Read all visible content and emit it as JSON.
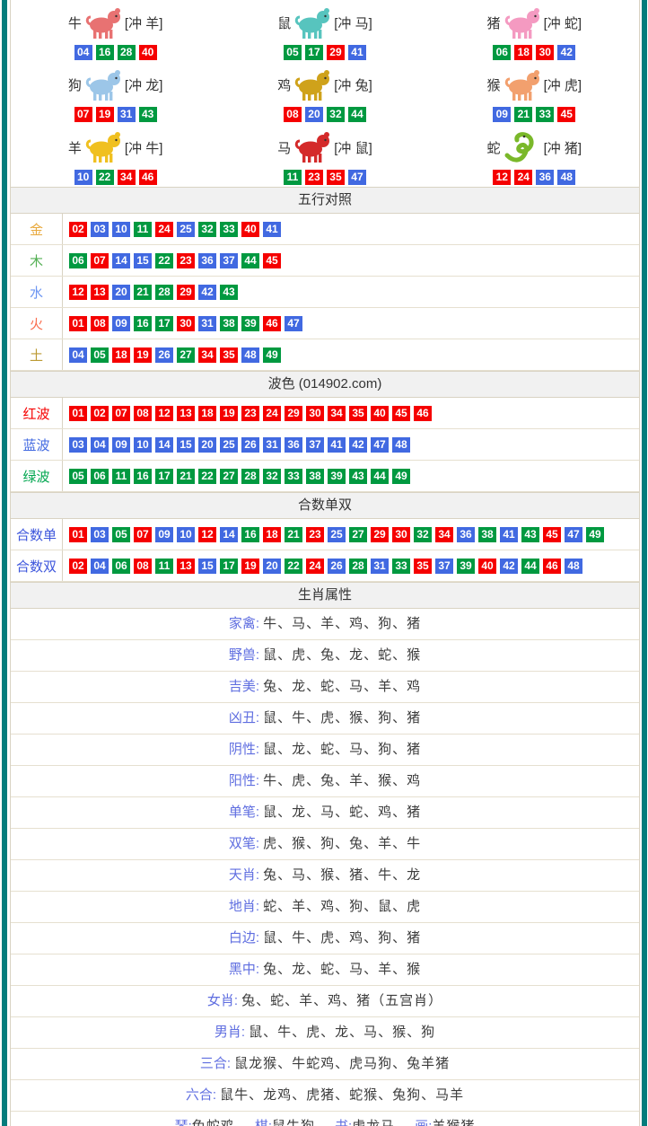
{
  "page": {
    "border_color": "#037C7C",
    "table_border_color": "#D9D3C3",
    "header_bg": "#F1F1F1"
  },
  "number_colors": {
    "red": "#F50000",
    "blue": "#4169E1",
    "green": "#009940"
  },
  "waves": {
    "red": [
      "01",
      "02",
      "07",
      "08",
      "12",
      "13",
      "18",
      "19",
      "23",
      "24",
      "29",
      "30",
      "34",
      "35",
      "40",
      "45",
      "46"
    ],
    "blue": [
      "03",
      "04",
      "09",
      "10",
      "14",
      "15",
      "20",
      "25",
      "26",
      "31",
      "36",
      "37",
      "41",
      "42",
      "47",
      "48"
    ],
    "green": [
      "05",
      "06",
      "11",
      "16",
      "17",
      "21",
      "22",
      "27",
      "28",
      "32",
      "33",
      "38",
      "39",
      "43",
      "44",
      "49"
    ]
  },
  "zodiac": [
    {
      "name": "牛",
      "clash": "[冲 羊]",
      "icon": "ox-icon",
      "icon_type": "quad",
      "icon_color": "#E87272",
      "numbers": [
        "04",
        "16",
        "28",
        "40"
      ]
    },
    {
      "name": "鼠",
      "clash": "[冲 马]",
      "icon": "rat-icon",
      "icon_type": "quad",
      "icon_color": "#57C4BE",
      "numbers": [
        "05",
        "17",
        "29",
        "41"
      ]
    },
    {
      "name": "猪",
      "clash": "[冲 蛇]",
      "icon": "pig-icon",
      "icon_type": "quad",
      "icon_color": "#F49AC1",
      "numbers": [
        "06",
        "18",
        "30",
        "42"
      ]
    },
    {
      "name": "狗",
      "clash": "[冲 龙]",
      "icon": "dog-icon",
      "icon_type": "quad",
      "icon_color": "#9CC6E8",
      "numbers": [
        "07",
        "19",
        "31",
        "43"
      ]
    },
    {
      "name": "鸡",
      "clash": "[冲 兔]",
      "icon": "rooster-icon",
      "icon_type": "quad",
      "icon_color": "#CFA21B",
      "numbers": [
        "08",
        "20",
        "32",
        "44"
      ]
    },
    {
      "name": "猴",
      "clash": "[冲 虎]",
      "icon": "monkey-icon",
      "icon_type": "quad",
      "icon_color": "#F2A06E",
      "numbers": [
        "09",
        "21",
        "33",
        "45"
      ]
    },
    {
      "name": "羊",
      "clash": "[冲 牛]",
      "icon": "goat-icon",
      "icon_type": "quad",
      "icon_color": "#F0C020",
      "numbers": [
        "10",
        "22",
        "34",
        "46"
      ]
    },
    {
      "name": "马",
      "clash": "[冲 鼠]",
      "icon": "horse-icon",
      "icon_type": "quad",
      "icon_color": "#D42A2A",
      "numbers": [
        "11",
        "23",
        "35",
        "47"
      ]
    },
    {
      "name": "蛇",
      "clash": "[冲 猪]",
      "icon": "snake-icon",
      "icon_type": "snake",
      "icon_color": "#7AB82A",
      "numbers": [
        "12",
        "24",
        "36",
        "48"
      ]
    }
  ],
  "sections": {
    "wuxing": {
      "title": "五行对照",
      "rows": [
        {
          "label": "金",
          "label_color": "#E8A93D",
          "numbers": [
            "02",
            "03",
            "10",
            "11",
            "24",
            "25",
            "32",
            "33",
            "40",
            "41"
          ]
        },
        {
          "label": "木",
          "label_color": "#55B055",
          "numbers": [
            "06",
            "07",
            "14",
            "15",
            "22",
            "23",
            "36",
            "37",
            "44",
            "45"
          ]
        },
        {
          "label": "水",
          "label_color": "#6C95F2",
          "numbers": [
            "12",
            "13",
            "20",
            "21",
            "28",
            "29",
            "42",
            "43"
          ]
        },
        {
          "label": "火",
          "label_color": "#FA6E4F",
          "numbers": [
            "01",
            "08",
            "09",
            "16",
            "17",
            "30",
            "31",
            "38",
            "39",
            "46",
            "47"
          ]
        },
        {
          "label": "土",
          "label_color": "#BC9A33",
          "numbers": [
            "04",
            "05",
            "18",
            "19",
            "26",
            "27",
            "34",
            "35",
            "48",
            "49"
          ]
        }
      ]
    },
    "bose": {
      "title": "波色 (014902.com)",
      "rows": [
        {
          "label": "红波",
          "label_color": "#F50000",
          "wave": "red"
        },
        {
          "label": "蓝波",
          "label_color": "#4169E1",
          "wave": "blue"
        },
        {
          "label": "绿波",
          "label_color": "#00A64F",
          "wave": "green"
        }
      ]
    },
    "heshu": {
      "title": "合数单双",
      "rows": [
        {
          "label": "合数单",
          "label_color": "#3D56DC",
          "numbers": [
            "01",
            "03",
            "05",
            "07",
            "09",
            "10",
            "12",
            "14",
            "16",
            "18",
            "21",
            "23",
            "25",
            "27",
            "29",
            "30",
            "32",
            "34",
            "36",
            "38",
            "41",
            "43",
            "45",
            "47",
            "49"
          ]
        },
        {
          "label": "合数双",
          "label_color": "#3D56DC",
          "numbers": [
            "02",
            "04",
            "06",
            "08",
            "11",
            "13",
            "15",
            "17",
            "19",
            "20",
            "22",
            "24",
            "26",
            "28",
            "31",
            "33",
            "35",
            "37",
            "39",
            "40",
            "42",
            "44",
            "46",
            "48"
          ]
        }
      ]
    },
    "shengxiao": {
      "title": "生肖属性",
      "rows": [
        {
          "label": "家禽",
          "value": "牛、马、羊、鸡、狗、猪"
        },
        {
          "label": "野兽",
          "value": "鼠、虎、兔、龙、蛇、猴"
        },
        {
          "label": "吉美",
          "value": "兔、龙、蛇、马、羊、鸡"
        },
        {
          "label": "凶丑",
          "value": "鼠、牛、虎、猴、狗、猪"
        },
        {
          "label": "阴性",
          "value": "鼠、龙、蛇、马、狗、猪"
        },
        {
          "label": "阳性",
          "value": "牛、虎、兔、羊、猴、鸡"
        },
        {
          "label": "单笔",
          "value": "鼠、龙、马、蛇、鸡、猪"
        },
        {
          "label": "双笔",
          "value": "虎、猴、狗、兔、羊、牛"
        },
        {
          "label": "天肖",
          "value": "兔、马、猴、猪、牛、龙"
        },
        {
          "label": "地肖",
          "value": "蛇、羊、鸡、狗、鼠、虎"
        },
        {
          "label": "白边",
          "value": "鼠、牛、虎、鸡、狗、猪"
        },
        {
          "label": "黑中",
          "value": "兔、龙、蛇、马、羊、猴"
        },
        {
          "label": "女肖",
          "value": "兔、蛇、羊、鸡、猪（五宫肖）"
        },
        {
          "label": "男肖",
          "value": "鼠、牛、虎、龙、马、猴、狗"
        },
        {
          "label": "三合",
          "value": "鼠龙猴、牛蛇鸡、虎马狗、兔羊猪"
        },
        {
          "label": "六合",
          "value": "鼠牛、龙鸡、虎猪、蛇猴、兔狗、马羊"
        }
      ]
    },
    "qinqishuhua": {
      "pairs": [
        {
          "label": "琴",
          "value": "兔蛇鸡"
        },
        {
          "label": "棋",
          "value": "鼠牛狗"
        },
        {
          "label": "书",
          "value": "虎龙马"
        },
        {
          "label": "画",
          "value": "羊猴猪"
        }
      ]
    }
  }
}
